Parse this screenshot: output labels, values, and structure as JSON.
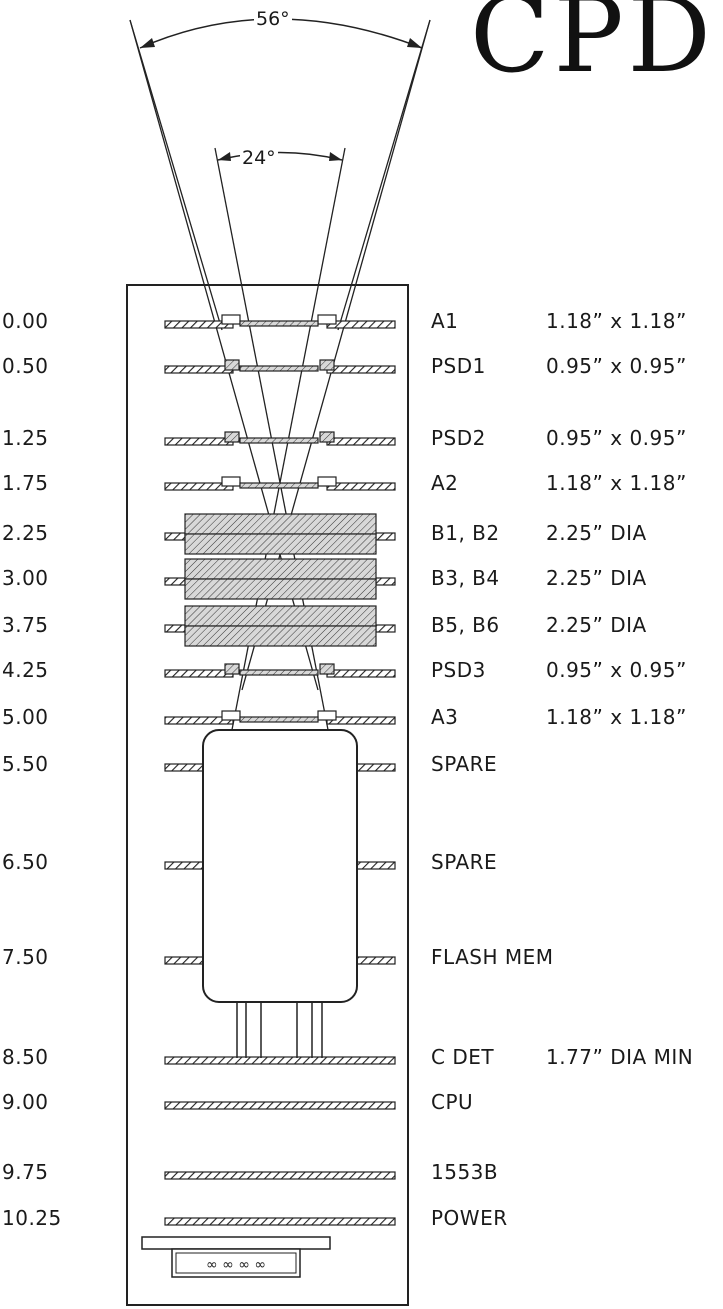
{
  "title": "CPD",
  "angles": {
    "outer": "56°",
    "inner": "24°"
  },
  "rows": [
    {
      "position": "0.00",
      "component": "A1",
      "dimension": "1.18” x 1.18”",
      "kind": "aperture"
    },
    {
      "position": "0.50",
      "component": "PSD1",
      "dimension": "0.95” x 0.95”",
      "kind": "psd"
    },
    {
      "position": "1.25",
      "component": "PSD2",
      "dimension": "0.95” x 0.95”",
      "kind": "psd"
    },
    {
      "position": "1.75",
      "component": "A2",
      "dimension": "1.18” x 1.18”",
      "kind": "aperture"
    },
    {
      "position": "2.25",
      "component": "B1, B2",
      "dimension": "2.25” DIA",
      "kind": "block"
    },
    {
      "position": "3.00",
      "component": "B3, B4",
      "dimension": "2.25” DIA",
      "kind": "block"
    },
    {
      "position": "3.75",
      "component": "B5, B6",
      "dimension": "2.25” DIA",
      "kind": "block"
    },
    {
      "position": "4.25",
      "component": "PSD3",
      "dimension": "0.95” x 0.95”",
      "kind": "psd"
    },
    {
      "position": "5.00",
      "component": "A3",
      "dimension": "1.18” x 1.18”",
      "kind": "aperture"
    },
    {
      "position": "5.50",
      "component": "SPARE",
      "dimension": "",
      "kind": "split"
    },
    {
      "position": "6.50",
      "component": "SPARE",
      "dimension": "",
      "kind": "split"
    },
    {
      "position": "7.50",
      "component": "FLASH MEM",
      "dimension": "",
      "kind": "split"
    },
    {
      "position": "8.50",
      "component": "C DET",
      "dimension": "1.77” DIA MIN",
      "kind": "full"
    },
    {
      "position": "9.00",
      "component": "CPU",
      "dimension": "",
      "kind": "full"
    },
    {
      "position": "9.75",
      "component": "1553B",
      "dimension": "",
      "kind": "full"
    },
    {
      "position": "10.25",
      "component": "POWER",
      "dimension": "",
      "kind": "full"
    }
  ],
  "connector_label": "∞ ∞ ∞ ∞"
}
